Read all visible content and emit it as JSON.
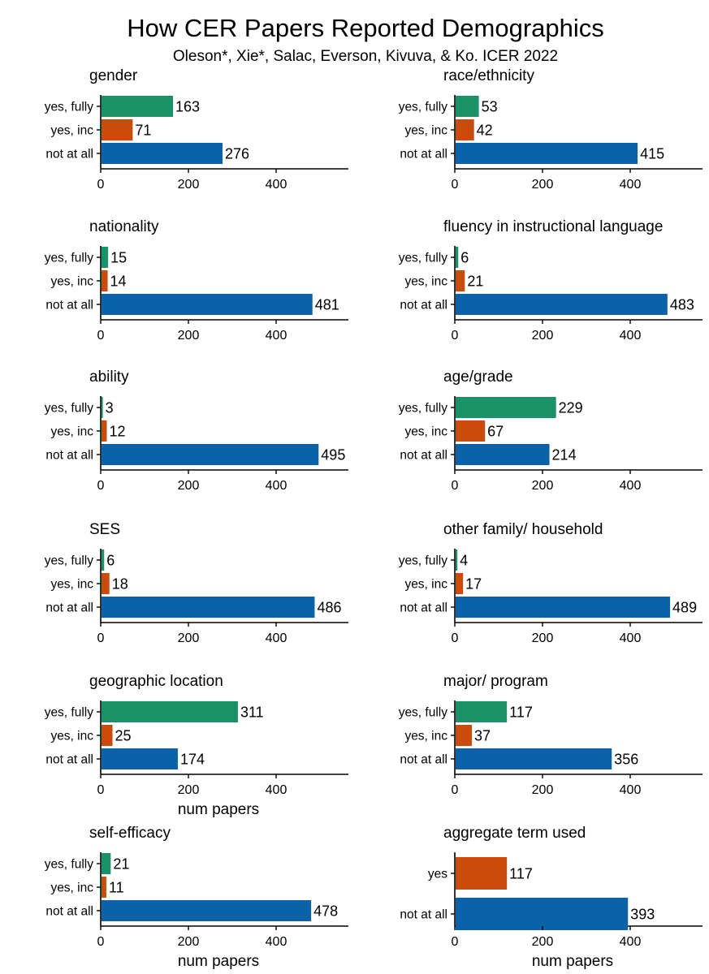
{
  "title": "How CER Papers Reported Demographics",
  "subtitle": "Oleson*, Xie*, Salac, Everson, Kivuva, & Ko. ICER 2022",
  "colors": {
    "yes_fully": "#1a9166",
    "yes_inc": "#cb4b0c",
    "not_at_all": "#0b62a8",
    "yes": "#cb4b0c"
  },
  "chart_data": [
    {
      "type": "bar",
      "orientation": "horizontal",
      "title": "gender",
      "categories": [
        "yes, fully",
        "yes, inc",
        "not at all"
      ],
      "values": [
        163,
        71,
        276
      ],
      "xlim": [
        0,
        560
      ],
      "xticks": [
        0,
        200,
        400
      ],
      "xlabel": "",
      "grid": false
    },
    {
      "type": "bar",
      "orientation": "horizontal",
      "title": "race/ethnicity",
      "categories": [
        "yes, fully",
        "yes, inc",
        "not at all"
      ],
      "values": [
        53,
        42,
        415
      ],
      "xlim": [
        0,
        560
      ],
      "xticks": [
        0,
        200,
        400
      ],
      "xlabel": "",
      "grid": false
    },
    {
      "type": "bar",
      "orientation": "horizontal",
      "title": "nationality",
      "categories": [
        "yes, fully",
        "yes, inc",
        "not at all"
      ],
      "values": [
        15,
        14,
        481
      ],
      "xlim": [
        0,
        560
      ],
      "xticks": [
        0,
        200,
        400
      ],
      "xlabel": "",
      "grid": false
    },
    {
      "type": "bar",
      "orientation": "horizontal",
      "title": "fluency in instructional language",
      "categories": [
        "yes, fully",
        "yes, inc",
        "not at all"
      ],
      "values": [
        6,
        21,
        483
      ],
      "xlim": [
        0,
        560
      ],
      "xticks": [
        0,
        200,
        400
      ],
      "xlabel": "",
      "grid": false
    },
    {
      "type": "bar",
      "orientation": "horizontal",
      "title": "ability",
      "categories": [
        "yes, fully",
        "yes, inc",
        "not at all"
      ],
      "values": [
        3,
        12,
        495
      ],
      "xlim": [
        0,
        560
      ],
      "xticks": [
        0,
        200,
        400
      ],
      "xlabel": "",
      "grid": false
    },
    {
      "type": "bar",
      "orientation": "horizontal",
      "title": "age/grade",
      "categories": [
        "yes, fully",
        "yes, inc",
        "not at all"
      ],
      "values": [
        229,
        67,
        214
      ],
      "xlim": [
        0,
        560
      ],
      "xticks": [
        0,
        200,
        400
      ],
      "xlabel": "",
      "grid": false
    },
    {
      "type": "bar",
      "orientation": "horizontal",
      "title": "SES",
      "categories": [
        "yes, fully",
        "yes, inc",
        "not at all"
      ],
      "values": [
        6,
        18,
        486
      ],
      "xlim": [
        0,
        560
      ],
      "xticks": [
        0,
        200,
        400
      ],
      "xlabel": "",
      "grid": false
    },
    {
      "type": "bar",
      "orientation": "horizontal",
      "title": "other family/ household",
      "categories": [
        "yes, fully",
        "yes, inc",
        "not at all"
      ],
      "values": [
        4,
        17,
        489
      ],
      "xlim": [
        0,
        560
      ],
      "xticks": [
        0,
        200,
        400
      ],
      "xlabel": "",
      "grid": false
    },
    {
      "type": "bar",
      "orientation": "horizontal",
      "title": "geographic location",
      "categories": [
        "yes, fully",
        "yes, inc",
        "not at all"
      ],
      "values": [
        311,
        25,
        174
      ],
      "xlim": [
        0,
        560
      ],
      "xticks": [
        0,
        200,
        400
      ],
      "xlabel": "num papers",
      "grid": false
    },
    {
      "type": "bar",
      "orientation": "horizontal",
      "title": "major/ program",
      "categories": [
        "yes, fully",
        "yes, inc",
        "not at all"
      ],
      "values": [
        117,
        37,
        356
      ],
      "xlim": [
        0,
        560
      ],
      "xticks": [
        0,
        200,
        400
      ],
      "xlabel": "",
      "grid": false
    },
    {
      "type": "bar",
      "orientation": "horizontal",
      "title": "self-efficacy",
      "categories": [
        "yes, fully",
        "yes, inc",
        "not at all"
      ],
      "values": [
        21,
        11,
        478
      ],
      "xlim": [
        0,
        560
      ],
      "xticks": [
        0,
        200,
        400
      ],
      "xlabel": "num papers",
      "grid": false
    },
    {
      "type": "bar",
      "orientation": "horizontal",
      "title": "aggregate term used",
      "categories": [
        "yes",
        "not at all"
      ],
      "values": [
        117,
        393
      ],
      "xlim": [
        0,
        560
      ],
      "xticks": [
        0,
        200,
        400
      ],
      "xlabel": "num papers",
      "grid": false
    }
  ]
}
